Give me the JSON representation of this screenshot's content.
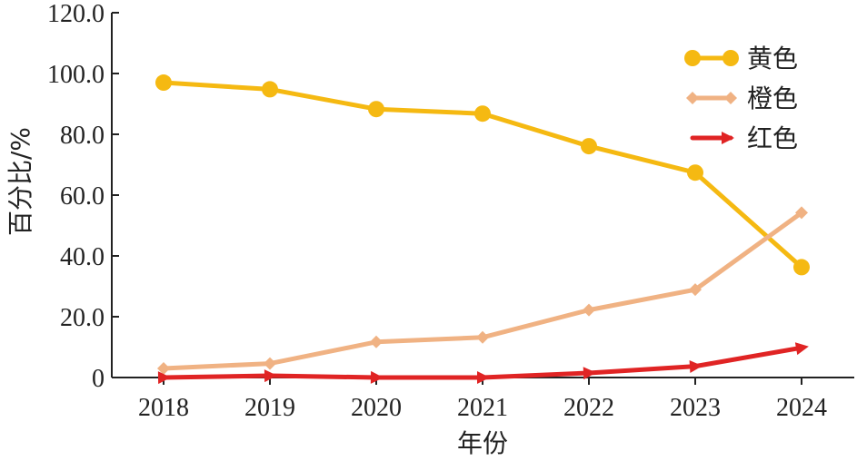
{
  "chart_data": {
    "type": "line",
    "title": "",
    "xlabel": "年份",
    "ylabel": "百分比/%",
    "ylim": [
      0,
      120
    ],
    "yticks": [
      "0",
      "20.0",
      "40.0",
      "60.0",
      "80.0",
      "100.0",
      "120.0"
    ],
    "categories": [
      "2018",
      "2019",
      "2020",
      "2021",
      "2022",
      "2023",
      "2024"
    ],
    "legend_position": "top-right",
    "series": [
      {
        "name": "黄色",
        "color": "#F5B912",
        "marker": "circle",
        "values": [
          97.0,
          94.8,
          88.3,
          86.8,
          76.1,
          67.4,
          36.3
        ]
      },
      {
        "name": "橙色",
        "color": "#F0B283",
        "marker": "diamond",
        "values": [
          3.0,
          4.6,
          11.7,
          13.2,
          22.2,
          28.9,
          54.2
        ]
      },
      {
        "name": "红色",
        "color": "#E02424",
        "marker": "arrow",
        "values": [
          0.0,
          0.6,
          0.0,
          0.0,
          1.5,
          3.7,
          9.8
        ]
      }
    ]
  }
}
